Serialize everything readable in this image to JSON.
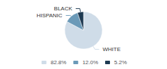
{
  "chart_data": {
    "type": "pie",
    "categories": [
      "WHITE",
      "HISPANIC",
      "BLACK"
    ],
    "values": [
      82.8,
      12.0,
      5.2
    ],
    "value_labels": [
      "82.8%",
      "12.0%",
      "5.2%"
    ],
    "colors": [
      "#cfdce8",
      "#6b9ab8",
      "#1e3a52"
    ],
    "legend": "bottom"
  }
}
